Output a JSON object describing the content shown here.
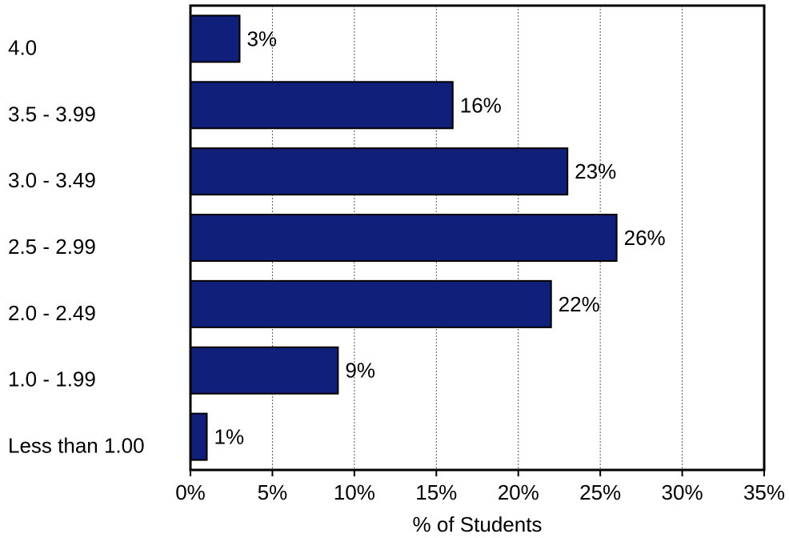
{
  "chart_data": {
    "type": "bar",
    "orientation": "horizontal",
    "title": "",
    "xlabel": "% of Students",
    "ylabel": "",
    "categories": [
      "4.0",
      "3.5 - 3.99",
      "3.0 - 3.49",
      "2.5 - 2.99",
      "2.0 - 2.49",
      "1.0 - 1.99",
      "Less than 1.00"
    ],
    "values": [
      3,
      16,
      23,
      26,
      22,
      9,
      1
    ],
    "data_labels": [
      "3%",
      "16%",
      "23%",
      "26%",
      "22%",
      "9%",
      "1%"
    ],
    "xlim": [
      0,
      35
    ],
    "xticks": [
      0,
      5,
      10,
      15,
      20,
      25,
      30,
      35
    ],
    "xtick_labels": [
      "0%",
      "5%",
      "10%",
      "15%",
      "20%",
      "25%",
      "30%",
      "35%"
    ],
    "grid": "vertical dashed",
    "legend": "none",
    "bar_color": "#0f1f7a",
    "bar_edge_color": "#000000"
  }
}
